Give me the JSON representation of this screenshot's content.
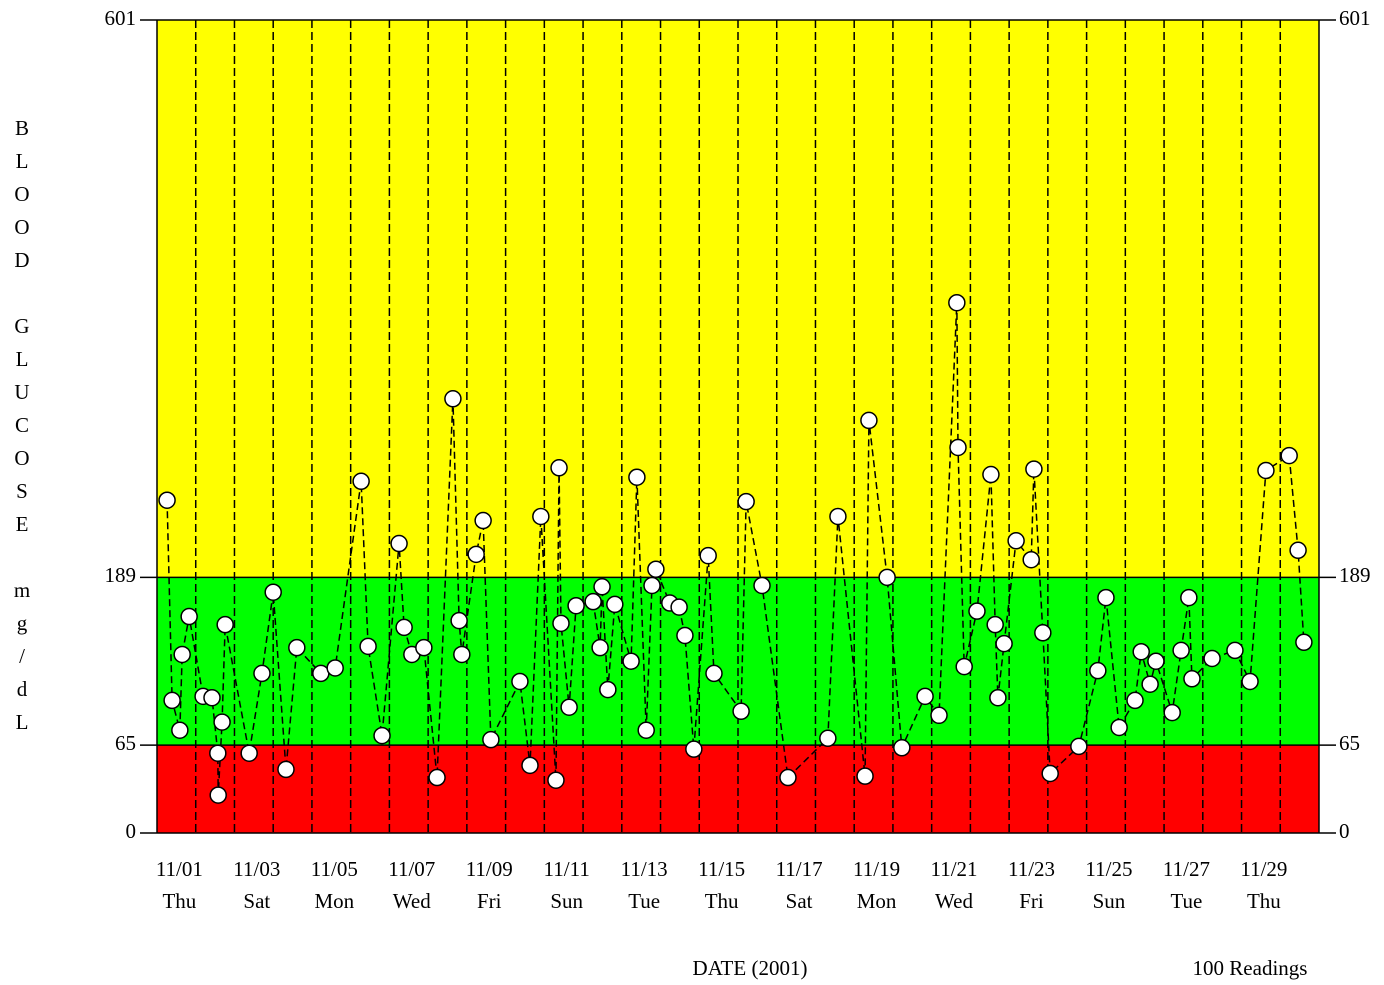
{
  "chart_data": {
    "type": "line",
    "y_label": "BLOOD GLUCOSE mg/dL",
    "x_label": "DATE (2001)",
    "note": "100 Readings",
    "xlim": [
      1,
      31
    ],
    "xticks": [
      1,
      2,
      3,
      4,
      5,
      6,
      7,
      8,
      9,
      10,
      11,
      12,
      13,
      14,
      15,
      16,
      17,
      18,
      19,
      20,
      21,
      22,
      23,
      24,
      25,
      26,
      27,
      28,
      29,
      30,
      31
    ],
    "day_labels": [
      {
        "day": 1,
        "date": "11/01",
        "weekday": "Thu"
      },
      {
        "day": 3,
        "date": "11/03",
        "weekday": "Sat"
      },
      {
        "day": 5,
        "date": "11/05",
        "weekday": "Mon"
      },
      {
        "day": 7,
        "date": "11/07",
        "weekday": "Wed"
      },
      {
        "day": 9,
        "date": "11/09",
        "weekday": "Fri"
      },
      {
        "day": 11,
        "date": "11/11",
        "weekday": "Sun"
      },
      {
        "day": 13,
        "date": "11/13",
        "weekday": "Tue"
      },
      {
        "day": 15,
        "date": "11/15",
        "weekday": "Thu"
      },
      {
        "day": 17,
        "date": "11/17",
        "weekday": "Sat"
      },
      {
        "day": 19,
        "date": "11/19",
        "weekday": "Mon"
      },
      {
        "day": 21,
        "date": "11/21",
        "weekday": "Wed"
      },
      {
        "day": 23,
        "date": "11/23",
        "weekday": "Fri"
      },
      {
        "day": 25,
        "date": "11/25",
        "weekday": "Sun"
      },
      {
        "day": 27,
        "date": "11/27",
        "weekday": "Tue"
      },
      {
        "day": 29,
        "date": "11/29",
        "weekday": "Thu"
      }
    ],
    "ylim": [
      0,
      601
    ],
    "yticks": [
      0,
      65,
      189,
      601
    ],
    "bands": [
      {
        "from": 0,
        "to": 65,
        "color": "#ff0000"
      },
      {
        "from": 65,
        "to": 189,
        "color": "#00ff00"
      },
      {
        "from": 189,
        "to": 601,
        "color": "#ffff00"
      }
    ],
    "x": [
      1.26,
      1.39,
      1.59,
      1.65,
      1.83,
      2.19,
      2.42,
      2.57,
      2.58,
      2.68,
      2.76,
      3.38,
      3.71,
      4.0,
      4.33,
      4.61,
      5.23,
      5.6,
      6.27,
      6.45,
      6.81,
      7.25,
      7.38,
      7.58,
      7.89,
      8.23,
      8.64,
      8.8,
      8.87,
      9.24,
      9.42,
      9.62,
      10.37,
      10.63,
      10.91,
      11.3,
      11.38,
      11.43,
      11.64,
      11.82,
      12.26,
      12.44,
      12.49,
      12.64,
      12.82,
      13.24,
      13.39,
      13.63,
      13.78,
      13.88,
      14.24,
      14.48,
      14.63,
      14.86,
      15.23,
      15.38,
      16.08,
      16.21,
      16.62,
      17.29,
      18.32,
      18.58,
      19.28,
      19.38,
      19.85,
      20.23,
      20.83,
      21.19,
      21.65,
      21.68,
      21.84,
      22.17,
      22.53,
      22.64,
      22.71,
      22.87,
      23.18,
      23.57,
      23.64,
      23.87,
      24.06,
      24.8,
      25.29,
      25.5,
      25.84,
      26.25,
      26.41,
      26.64,
      26.79,
      27.21,
      27.44,
      27.64,
      27.72,
      28.24,
      28.83,
      29.22,
      29.63,
      30.23,
      30.46,
      30.61
    ],
    "values": [
      246,
      98,
      76,
      132,
      160,
      101,
      100,
      59,
      28,
      82,
      154,
      59,
      118,
      178,
      47,
      137,
      118,
      122,
      260,
      138,
      72,
      214,
      152,
      132,
      137,
      41,
      321,
      157,
      132,
      206,
      231,
      69,
      112,
      50,
      234,
      39,
      270,
      155,
      93,
      168,
      171,
      137,
      182,
      106,
      169,
      127,
      263,
      76,
      183,
      195,
      170,
      167,
      146,
      62,
      205,
      118,
      90,
      245,
      183,
      41,
      70,
      234,
      42,
      305,
      189,
      63,
      101,
      87,
      392,
      285,
      123,
      164,
      265,
      154,
      100,
      140,
      216,
      202,
      269,
      148,
      44,
      64,
      120,
      174,
      78,
      98,
      134,
      110,
      127,
      89,
      135,
      174,
      114,
      129,
      135,
      112,
      268,
      279,
      209,
      141
    ],
    "color": "#000000",
    "marker_fill": "#ffffff"
  }
}
